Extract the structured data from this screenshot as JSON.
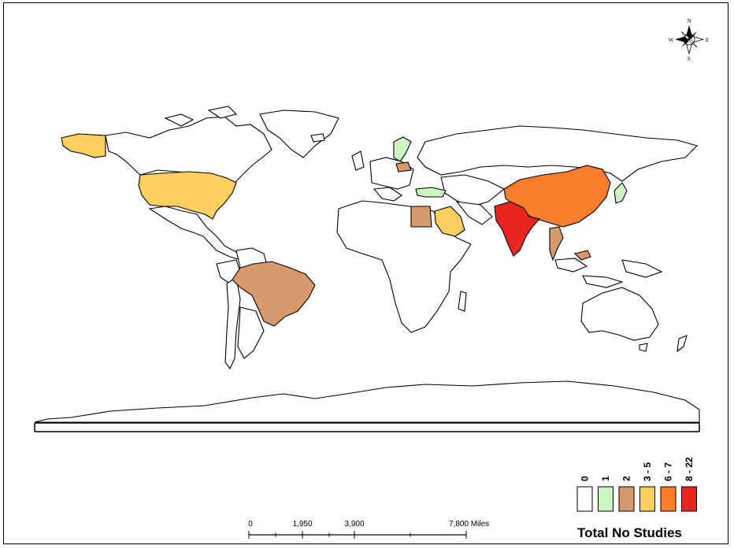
{
  "map": {
    "compass": {
      "north": "N",
      "south": "S",
      "east": "E",
      "west": "W",
      "icon": "compass-rose-icon"
    },
    "scale_bar": {
      "ticks": [
        "0",
        "1,950",
        "3,900",
        "7,800 Miles"
      ]
    },
    "legend": {
      "title": "Total No Studies",
      "classes": [
        {
          "label": "0",
          "color": "#ffffff"
        },
        {
          "label": "1",
          "color": "#ccf5c4"
        },
        {
          "label": "2",
          "color": "#d69a6b"
        },
        {
          "label": "3 - 5",
          "color": "#fdcf5d"
        },
        {
          "label": "6 - 7",
          "color": "#f97d2d"
        },
        {
          "label": "8 - 22",
          "color": "#e8261f"
        }
      ]
    },
    "highlighted_countries": [
      {
        "name": "United States",
        "class": "3 - 5"
      },
      {
        "name": "Alaska (US)",
        "class": "3 - 5"
      },
      {
        "name": "Brazil",
        "class": "2"
      },
      {
        "name": "Sweden",
        "class": "1"
      },
      {
        "name": "Poland",
        "class": "2"
      },
      {
        "name": "Turkey",
        "class": "1"
      },
      {
        "name": "Egypt",
        "class": "2"
      },
      {
        "name": "Saudi Arabia",
        "class": "3 - 5"
      },
      {
        "name": "India",
        "class": "8 - 22"
      },
      {
        "name": "China",
        "class": "6 - 7"
      },
      {
        "name": "Japan",
        "class": "1"
      },
      {
        "name": "Thailand",
        "class": "2"
      },
      {
        "name": "Malaysia",
        "class": "2"
      }
    ]
  }
}
